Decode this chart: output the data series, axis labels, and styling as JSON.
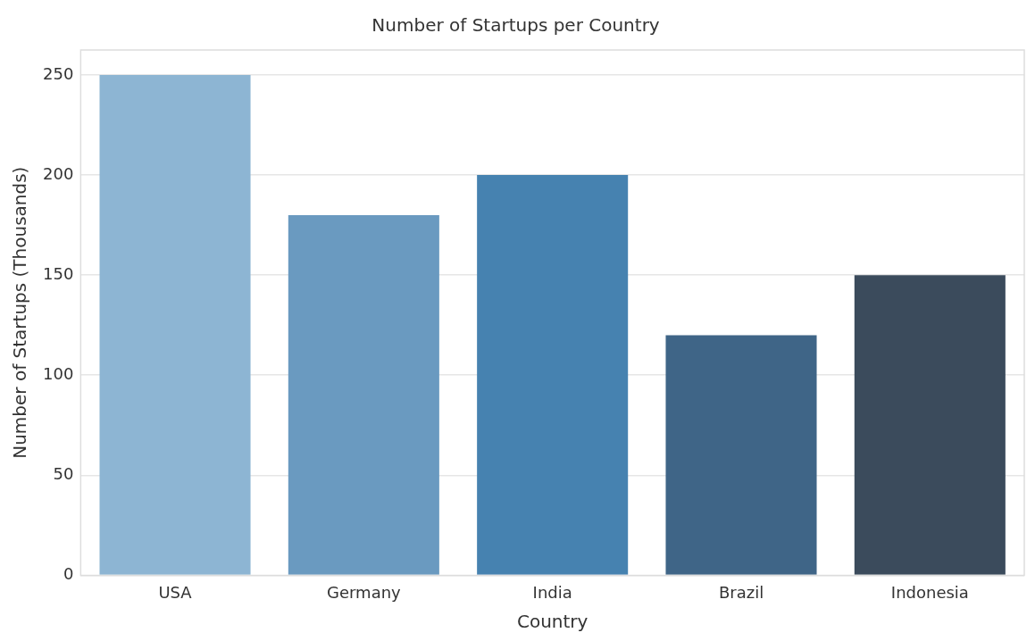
{
  "chart_data": {
    "type": "bar",
    "title": "Number of Startups per Country",
    "xlabel": "Country",
    "ylabel": "Number of Startups (Thousands)",
    "categories": [
      "USA",
      "Germany",
      "India",
      "Brazil",
      "Indonesia"
    ],
    "values": [
      250,
      180,
      200,
      120,
      150
    ],
    "colors": [
      "#8db5d3",
      "#6a9ac0",
      "#4682b0",
      "#3f6587",
      "#3b4b5c"
    ],
    "ylim": [
      0,
      262.5
    ],
    "yticks": [
      0,
      50,
      100,
      150,
      200,
      250
    ],
    "grid": "y",
    "legend": false
  }
}
